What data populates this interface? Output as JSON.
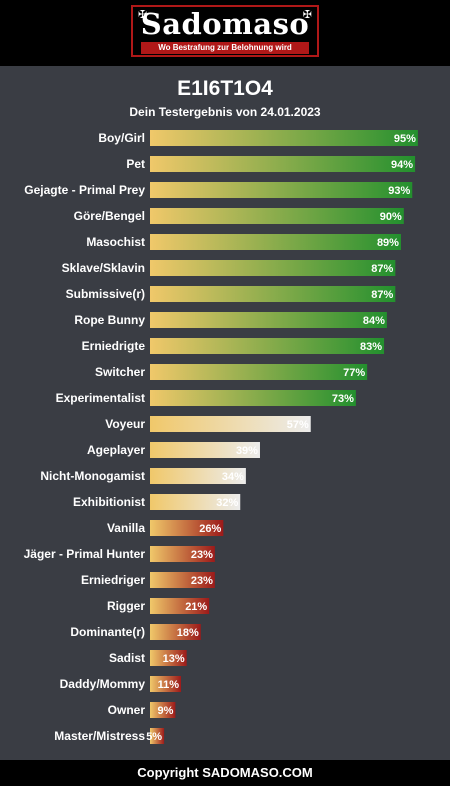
{
  "header": {
    "logo_text": "Sadomaso",
    "logo_tagline": "Wo Bestrafung zur Belohnung wird"
  },
  "title": "E1I6T1O4",
  "subtitle": "Dein Testergebnis von 24.01.2023",
  "footer": "Copyright SADOMASO.COM",
  "colors": {
    "background": "#3a3d44",
    "bar_start": "#f0c86a",
    "high_end": "#23902e",
    "mid_end": "#ececec",
    "low_end": "#9c1a1a"
  },
  "chart_data": {
    "type": "bar",
    "orientation": "horizontal",
    "xlim": [
      0,
      100
    ],
    "unit": "%",
    "categories": [
      "Boy/Girl",
      "Pet",
      "Gejagte - Primal Prey",
      "Göre/Bengel",
      "Masochist",
      "Sklave/Sklavin",
      "Submissive(r)",
      "Rope Bunny",
      "Erniedrigte",
      "Switcher",
      "Experimentalist",
      "Voyeur",
      "Ageplayer",
      "Nicht-Monogamist",
      "Exhibitionist",
      "Vanilla",
      "Jäger - Primal Hunter",
      "Erniedriger",
      "Rigger",
      "Dominante(r)",
      "Sadist",
      "Daddy/Mommy",
      "Owner",
      "Master/Mistress"
    ],
    "values": [
      95,
      94,
      93,
      90,
      89,
      87,
      87,
      84,
      83,
      77,
      73,
      57,
      39,
      34,
      32,
      26,
      23,
      23,
      21,
      18,
      13,
      11,
      9,
      5
    ],
    "value_labels": [
      "95%",
      "94%",
      "93%",
      "90%",
      "89%",
      "87%",
      "87%",
      "84%",
      "83%",
      "77%",
      "73%",
      "57%",
      "39%",
      "34%",
      "32%",
      "26%",
      "23%",
      "23%",
      "21%",
      "18%",
      "13%",
      "11%",
      "9%",
      "5%"
    ]
  }
}
